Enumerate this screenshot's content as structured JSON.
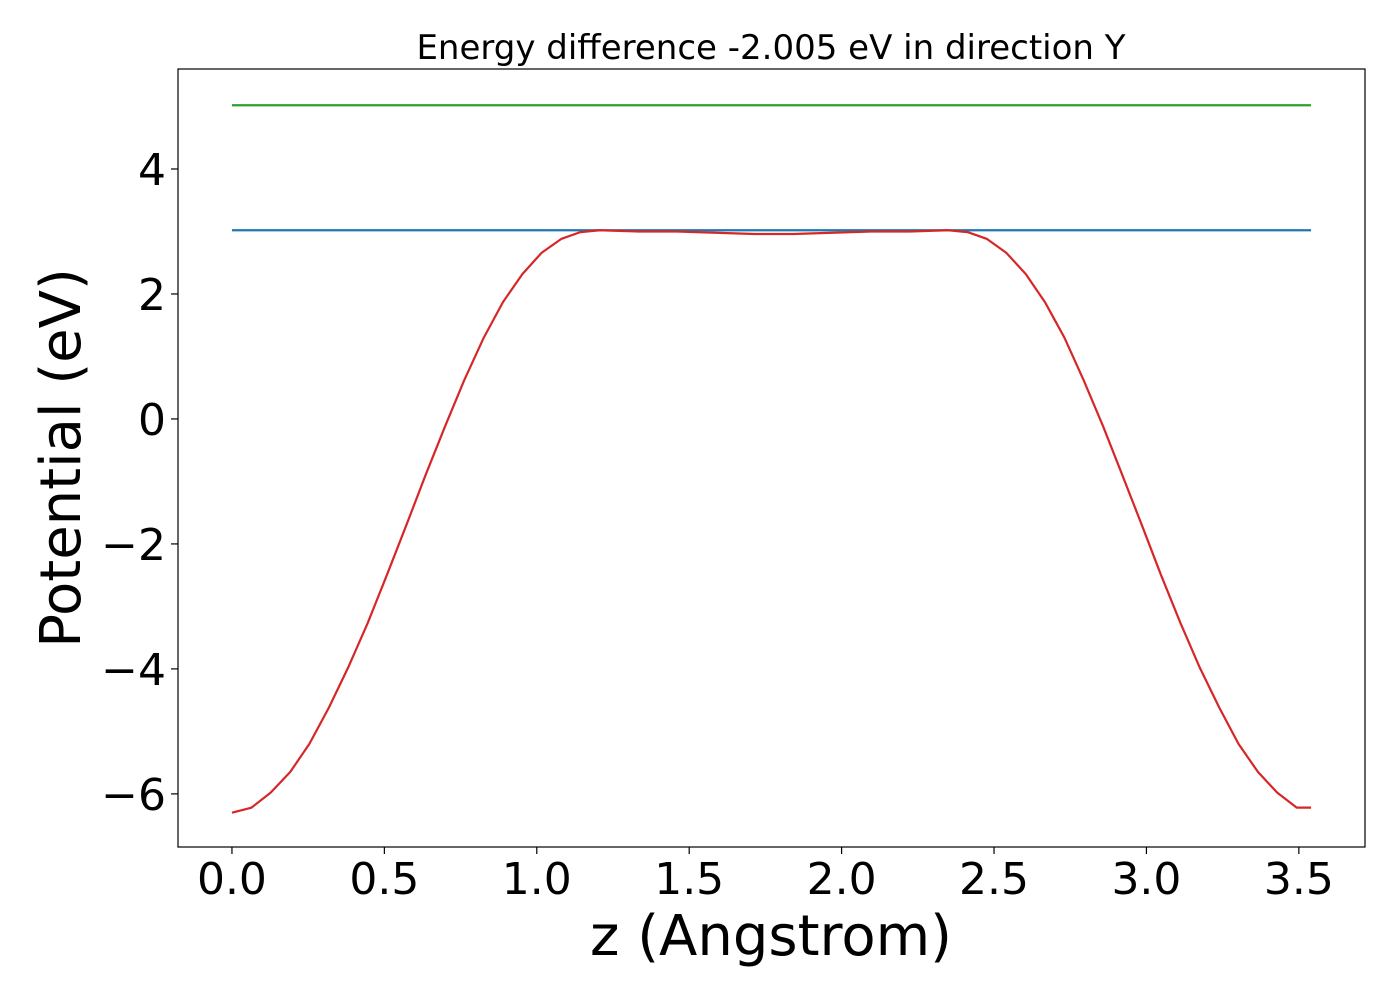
{
  "chart_data": {
    "type": "line",
    "title": "Energy difference -2.005 eV in direction Y",
    "xlabel": "z (Angstrom)",
    "ylabel": "Potential (eV)",
    "xlim": [
      -0.177,
      3.717
    ],
    "ylim": [
      -6.85,
      5.6
    ],
    "xticks": [
      0.0,
      0.5,
      1.0,
      1.5,
      2.0,
      2.5,
      3.0,
      3.5
    ],
    "xtick_labels": [
      "0.0",
      "0.5",
      "1.0",
      "1.5",
      "2.0",
      "2.5",
      "3.0",
      "3.5"
    ],
    "yticks": [
      -6,
      -4,
      -2,
      0,
      2,
      4
    ],
    "ytick_labels": [
      "−6",
      "−4",
      "−2",
      "0",
      "2",
      "4"
    ],
    "grid": false,
    "legend": false,
    "series": [
      {
        "color": "#d62728",
        "x": [
          0.0,
          0.064,
          0.127,
          0.191,
          0.254,
          0.318,
          0.381,
          0.445,
          0.508,
          0.572,
          0.635,
          0.699,
          0.762,
          0.826,
          0.889,
          0.953,
          1.016,
          1.08,
          1.143,
          1.207,
          1.27,
          1.334,
          1.397,
          1.461,
          1.524,
          1.588,
          1.651,
          1.715,
          1.778,
          1.842,
          1.905,
          1.969,
          2.032,
          2.096,
          2.159,
          2.223,
          2.286,
          2.35,
          2.413,
          2.477,
          2.54,
          2.604,
          2.667,
          2.731,
          2.794,
          2.858,
          2.921,
          2.985,
          3.048,
          3.112,
          3.175,
          3.239,
          3.302,
          3.366,
          3.429,
          3.493,
          3.54
        ],
        "values": [
          -6.3,
          -6.22,
          -5.98,
          -5.65,
          -5.2,
          -4.62,
          -3.98,
          -3.27,
          -2.5,
          -1.7,
          -0.9,
          -0.12,
          0.62,
          1.3,
          1.87,
          2.32,
          2.66,
          2.88,
          2.99,
          3.02,
          3.01,
          3.0,
          3.0,
          3.0,
          2.99,
          2.98,
          2.97,
          2.96,
          2.96,
          2.96,
          2.97,
          2.98,
          2.99,
          3.0,
          3.0,
          3.0,
          3.01,
          3.02,
          2.99,
          2.88,
          2.66,
          2.32,
          1.87,
          1.3,
          0.62,
          -0.12,
          -0.9,
          -1.7,
          -2.5,
          -3.27,
          -3.98,
          -4.62,
          -5.2,
          -5.65,
          -5.98,
          -6.22,
          -6.22
        ]
      },
      {
        "color": "#1f77b4",
        "x": [
          0.0,
          3.54
        ],
        "values": [
          3.02,
          3.02
        ]
      },
      {
        "color": "#2ca02c",
        "x": [
          0.0,
          3.54
        ],
        "values": [
          5.02,
          5.02
        ]
      }
    ]
  }
}
